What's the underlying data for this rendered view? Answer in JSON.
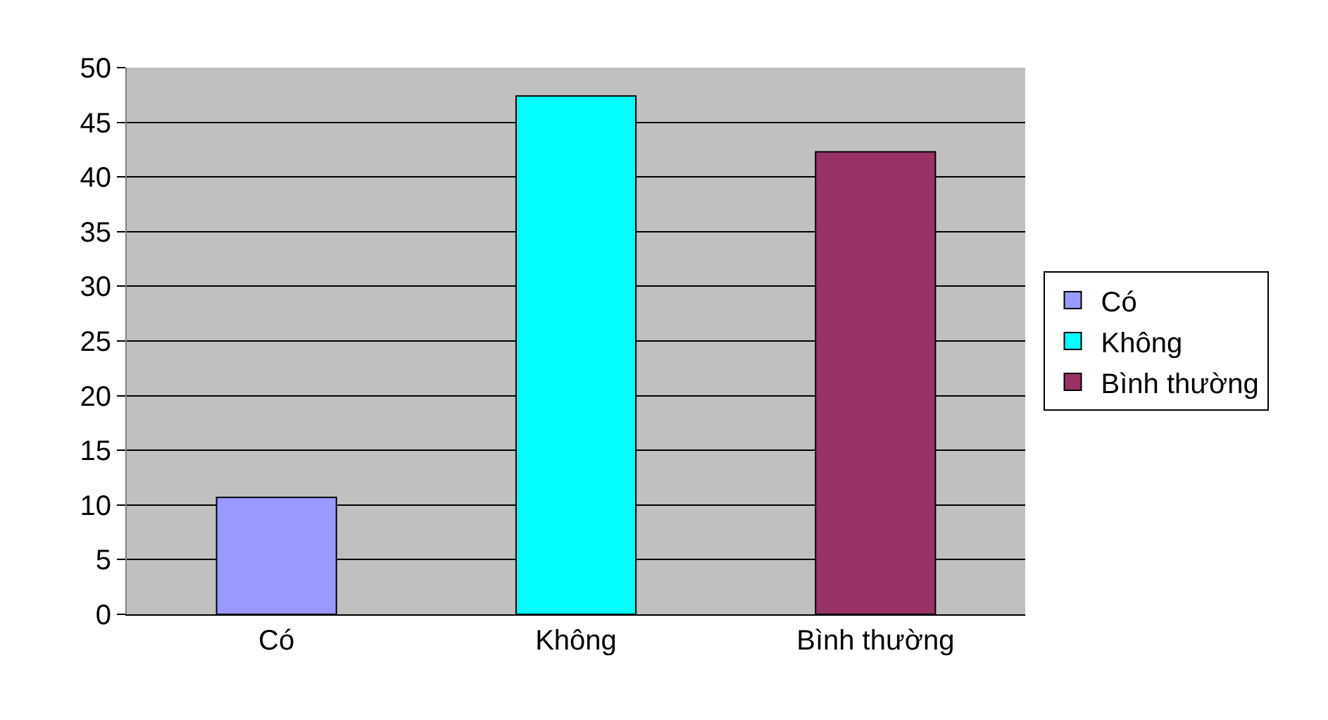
{
  "chart_data": {
    "type": "bar",
    "categories": [
      "Có",
      "Không",
      "Bình thường"
    ],
    "series": [
      {
        "name": "Có",
        "color": "#9999ff",
        "values": [
          10.7,
          null,
          null
        ]
      },
      {
        "name": "Không",
        "color": "#00ffff",
        "values": [
          null,
          47.4,
          null
        ]
      },
      {
        "name": "Bình thường",
        "color": "#993366",
        "values": [
          null,
          null,
          42.3
        ]
      }
    ],
    "ylim": [
      0,
      50
    ],
    "yticks": [
      0,
      5,
      10,
      15,
      20,
      25,
      30,
      35,
      40,
      45,
      50
    ],
    "grid": "y",
    "legend": "right"
  }
}
